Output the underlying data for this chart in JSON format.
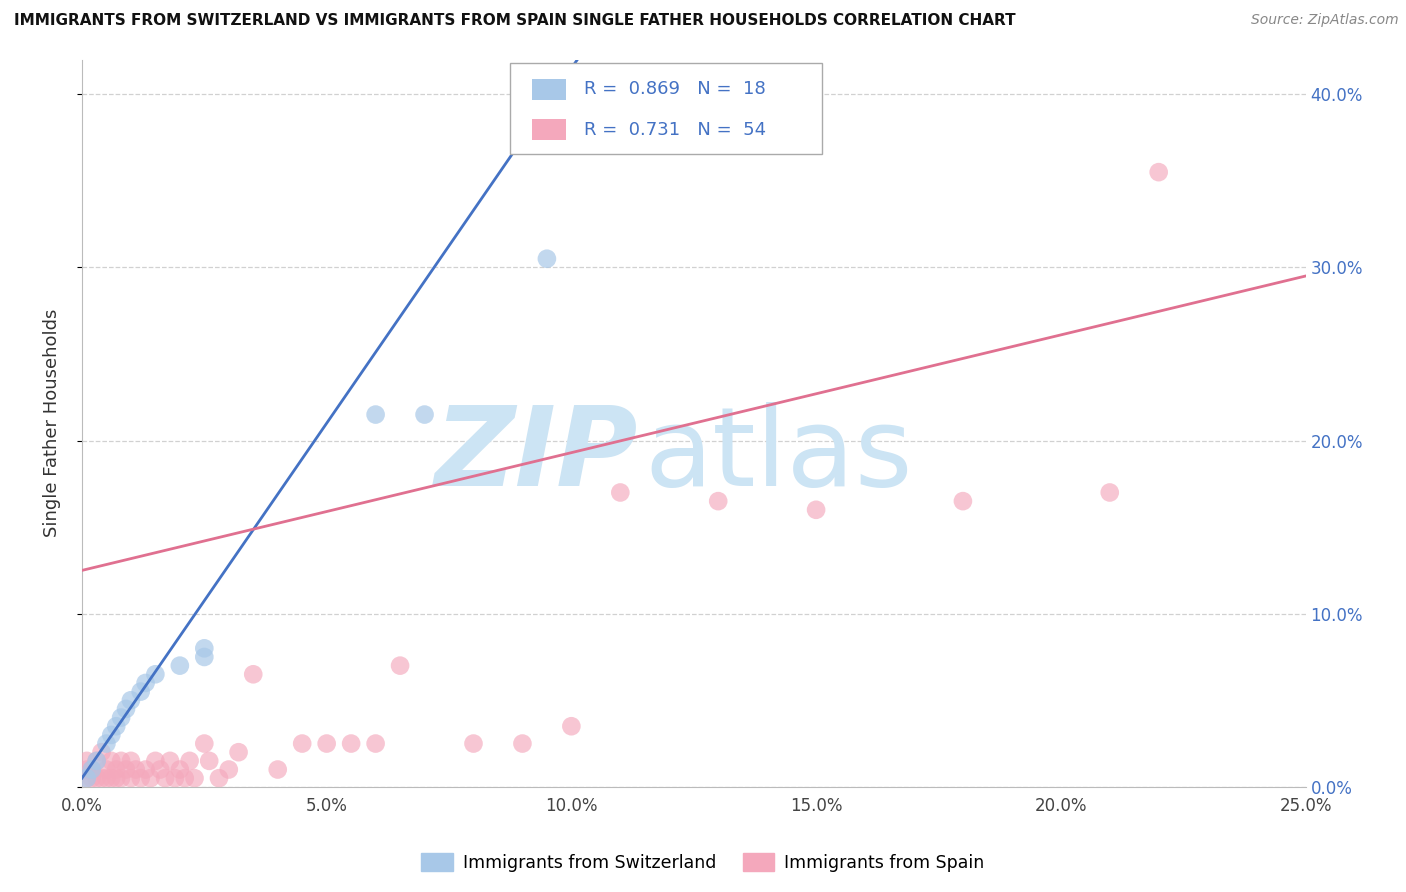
{
  "title": "IMMIGRANTS FROM SWITZERLAND VS IMMIGRANTS FROM SPAIN SINGLE FATHER HOUSEHOLDS CORRELATION CHART",
  "source": "Source: ZipAtlas.com",
  "ylabel": "Single Father Households",
  "xlim": [
    0.0,
    0.25
  ],
  "ylim": [
    0.0,
    0.42
  ],
  "r_swiss": 0.869,
  "n_swiss": 18,
  "r_spain": 0.731,
  "n_spain": 54,
  "color_swiss": "#a8c8e8",
  "color_spain": "#f4a8bc",
  "color_line_swiss": "#4472c4",
  "color_line_spain": "#e07090",
  "watermark_color": "#cce4f4",
  "legend_color_text": "#4472c4",
  "swiss_line_slope": 4.1,
  "swiss_line_intercept": 0.005,
  "spain_line_slope": 0.68,
  "spain_line_intercept": 0.125,
  "swiss_scatter_x": [
    0.001,
    0.002,
    0.003,
    0.005,
    0.006,
    0.007,
    0.008,
    0.009,
    0.01,
    0.012,
    0.013,
    0.015,
    0.02,
    0.025,
    0.025,
    0.06,
    0.07,
    0.095
  ],
  "swiss_scatter_y": [
    0.005,
    0.01,
    0.015,
    0.025,
    0.03,
    0.035,
    0.04,
    0.045,
    0.05,
    0.055,
    0.06,
    0.065,
    0.07,
    0.075,
    0.08,
    0.215,
    0.215,
    0.305
  ],
  "spain_scatter_x": [
    0.001,
    0.001,
    0.001,
    0.002,
    0.002,
    0.003,
    0.003,
    0.004,
    0.004,
    0.005,
    0.005,
    0.006,
    0.006,
    0.007,
    0.007,
    0.008,
    0.008,
    0.009,
    0.01,
    0.01,
    0.011,
    0.012,
    0.013,
    0.014,
    0.015,
    0.016,
    0.017,
    0.018,
    0.019,
    0.02,
    0.021,
    0.022,
    0.023,
    0.025,
    0.026,
    0.028,
    0.03,
    0.032,
    0.035,
    0.04,
    0.045,
    0.05,
    0.055,
    0.06,
    0.065,
    0.08,
    0.09,
    0.1,
    0.11,
    0.13,
    0.15,
    0.18,
    0.21,
    0.22
  ],
  "spain_scatter_y": [
    0.005,
    0.01,
    0.015,
    0.005,
    0.01,
    0.005,
    0.015,
    0.005,
    0.02,
    0.005,
    0.01,
    0.005,
    0.015,
    0.005,
    0.01,
    0.005,
    0.015,
    0.01,
    0.005,
    0.015,
    0.01,
    0.005,
    0.01,
    0.005,
    0.015,
    0.01,
    0.005,
    0.015,
    0.005,
    0.01,
    0.005,
    0.015,
    0.005,
    0.025,
    0.015,
    0.005,
    0.01,
    0.02,
    0.065,
    0.01,
    0.025,
    0.025,
    0.025,
    0.025,
    0.07,
    0.025,
    0.025,
    0.035,
    0.17,
    0.165,
    0.16,
    0.165,
    0.17,
    0.355
  ],
  "legend_label_swiss": "Immigrants from Switzerland",
  "legend_label_spain": "Immigrants from Spain"
}
